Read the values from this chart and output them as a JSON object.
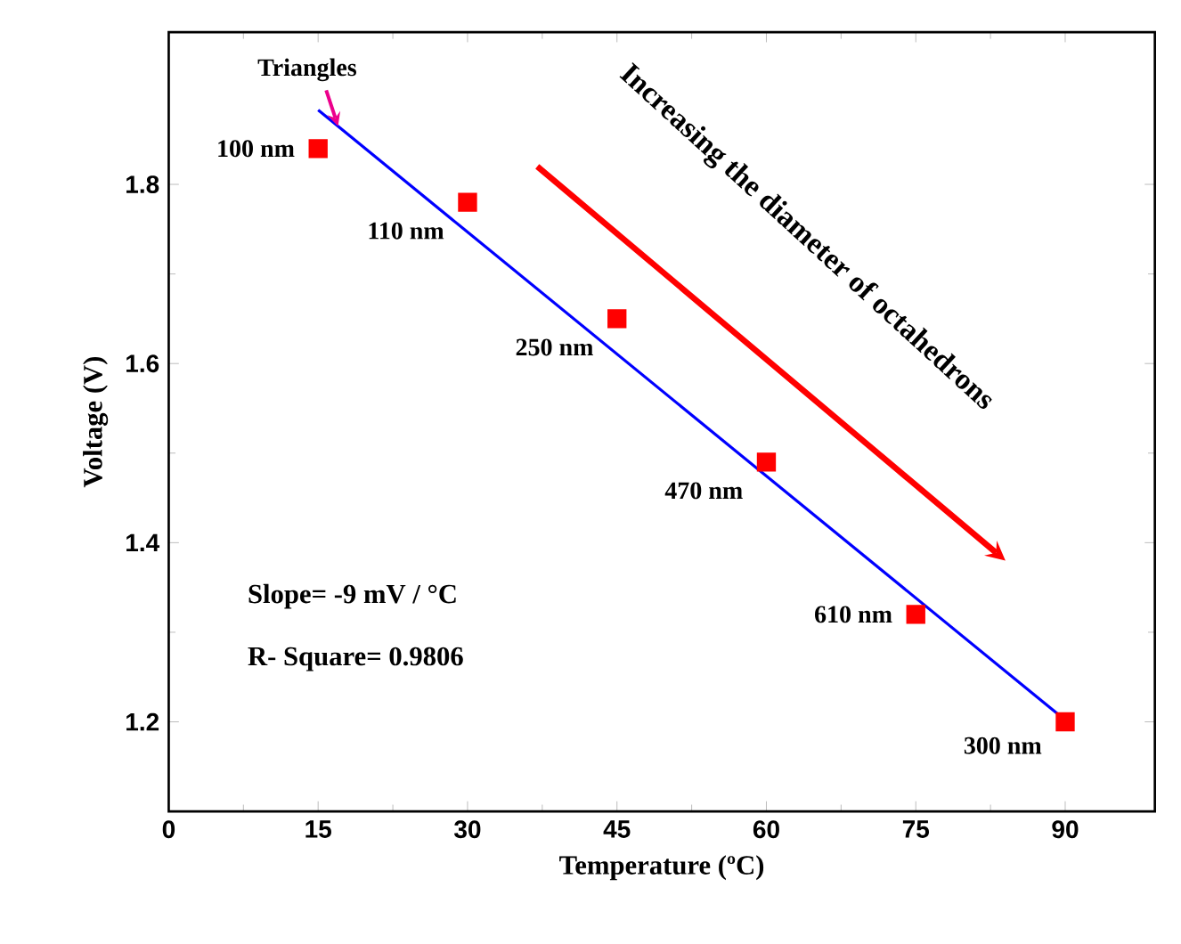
{
  "chart_data": {
    "type": "scatter",
    "xlabel": "Temperature (ºC)",
    "ylabel": "Voltage (V)",
    "xlim": [
      0,
      99
    ],
    "ylim": [
      1.1,
      1.97
    ],
    "xticks": [
      0,
      15,
      30,
      45,
      60,
      75,
      90
    ],
    "yticks": [
      1.2,
      1.4,
      1.6,
      1.8
    ],
    "marker": "square",
    "series": [
      {
        "color": "#ff0000",
        "x": [
          15,
          30,
          45,
          60,
          75,
          90
        ],
        "values": [
          1.84,
          1.78,
          1.65,
          1.49,
          1.32,
          1.2
        ]
      },
      {
        "type": "line",
        "color": "#0000ff",
        "marker": "none",
        "line_style": "solid",
        "x": [
          15,
          90
        ],
        "values": [
          1.883,
          1.202
        ]
      }
    ],
    "annotations": [
      {
        "text": "100 nm",
        "x": 15,
        "y": 1.84
      },
      {
        "text": "110 nm",
        "x": 30,
        "y": 1.78
      },
      {
        "text": "250 nm",
        "x": 45,
        "y": 1.65
      },
      {
        "text": "470 nm",
        "x": 60,
        "y": 1.49
      },
      {
        "text": "610 nm",
        "x": 75,
        "y": 1.32
      },
      {
        "text": "300 nm",
        "x": 90,
        "y": 1.2
      },
      {
        "text": "Triangles",
        "x": 17,
        "y": 1.865
      },
      "Increasing the diameter of octahedrons",
      "Slope= -9 mV / °C",
      "R- Square= 0.9806"
    ]
  }
}
